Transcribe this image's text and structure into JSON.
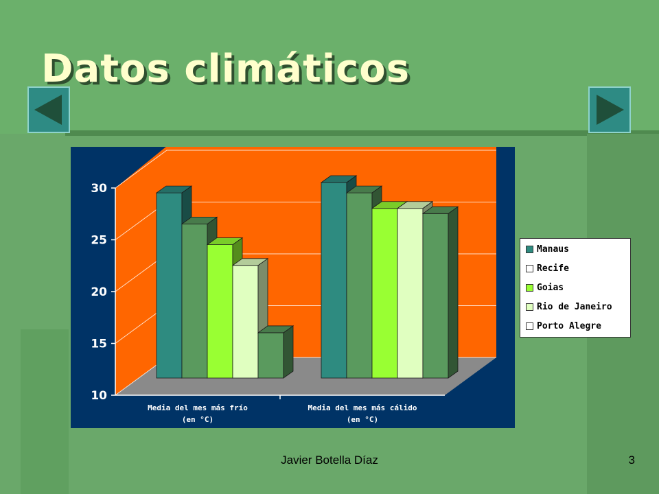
{
  "slide": {
    "title": "Datos climáticos",
    "author": "Javier Botella Díaz",
    "page_number": "3"
  },
  "nav": {
    "prev_icon": "triangle-left-icon",
    "next_icon": "triangle-right-icon"
  },
  "colors": {
    "slide_bg": "#6aa86a",
    "title_text": "#ffffcc",
    "plot_bg": "#003366",
    "back_wall": "#ff6600",
    "floor": "#8a8a8a",
    "button": "#2e8b84"
  },
  "chart_data": {
    "type": "bar",
    "style": "3d-clustered",
    "categories": [
      "Media del mes más frío\n(en °C)",
      "Media del mes más cálido\n(en °C)"
    ],
    "series": [
      {
        "name": "Manaus",
        "values": [
          29,
          30
        ],
        "color": "#2e8b80"
      },
      {
        "name": "Recife",
        "values": [
          26,
          29
        ],
        "color": "#5a9a5e"
      },
      {
        "name": "Goias",
        "values": [
          24,
          27.5
        ],
        "color": "#99ff33"
      },
      {
        "name": "Rio de Janeiro",
        "values": [
          22,
          27.5
        ],
        "color": "#e0ffc0"
      },
      {
        "name": "Porto Alegre",
        "values": [
          15.5,
          27
        ],
        "color": "#5a9a5e"
      }
    ],
    "ylim": [
      10,
      30
    ],
    "yticks": [
      "10",
      "15",
      "20",
      "25",
      "30"
    ],
    "grid": true,
    "legend_position": "right"
  }
}
